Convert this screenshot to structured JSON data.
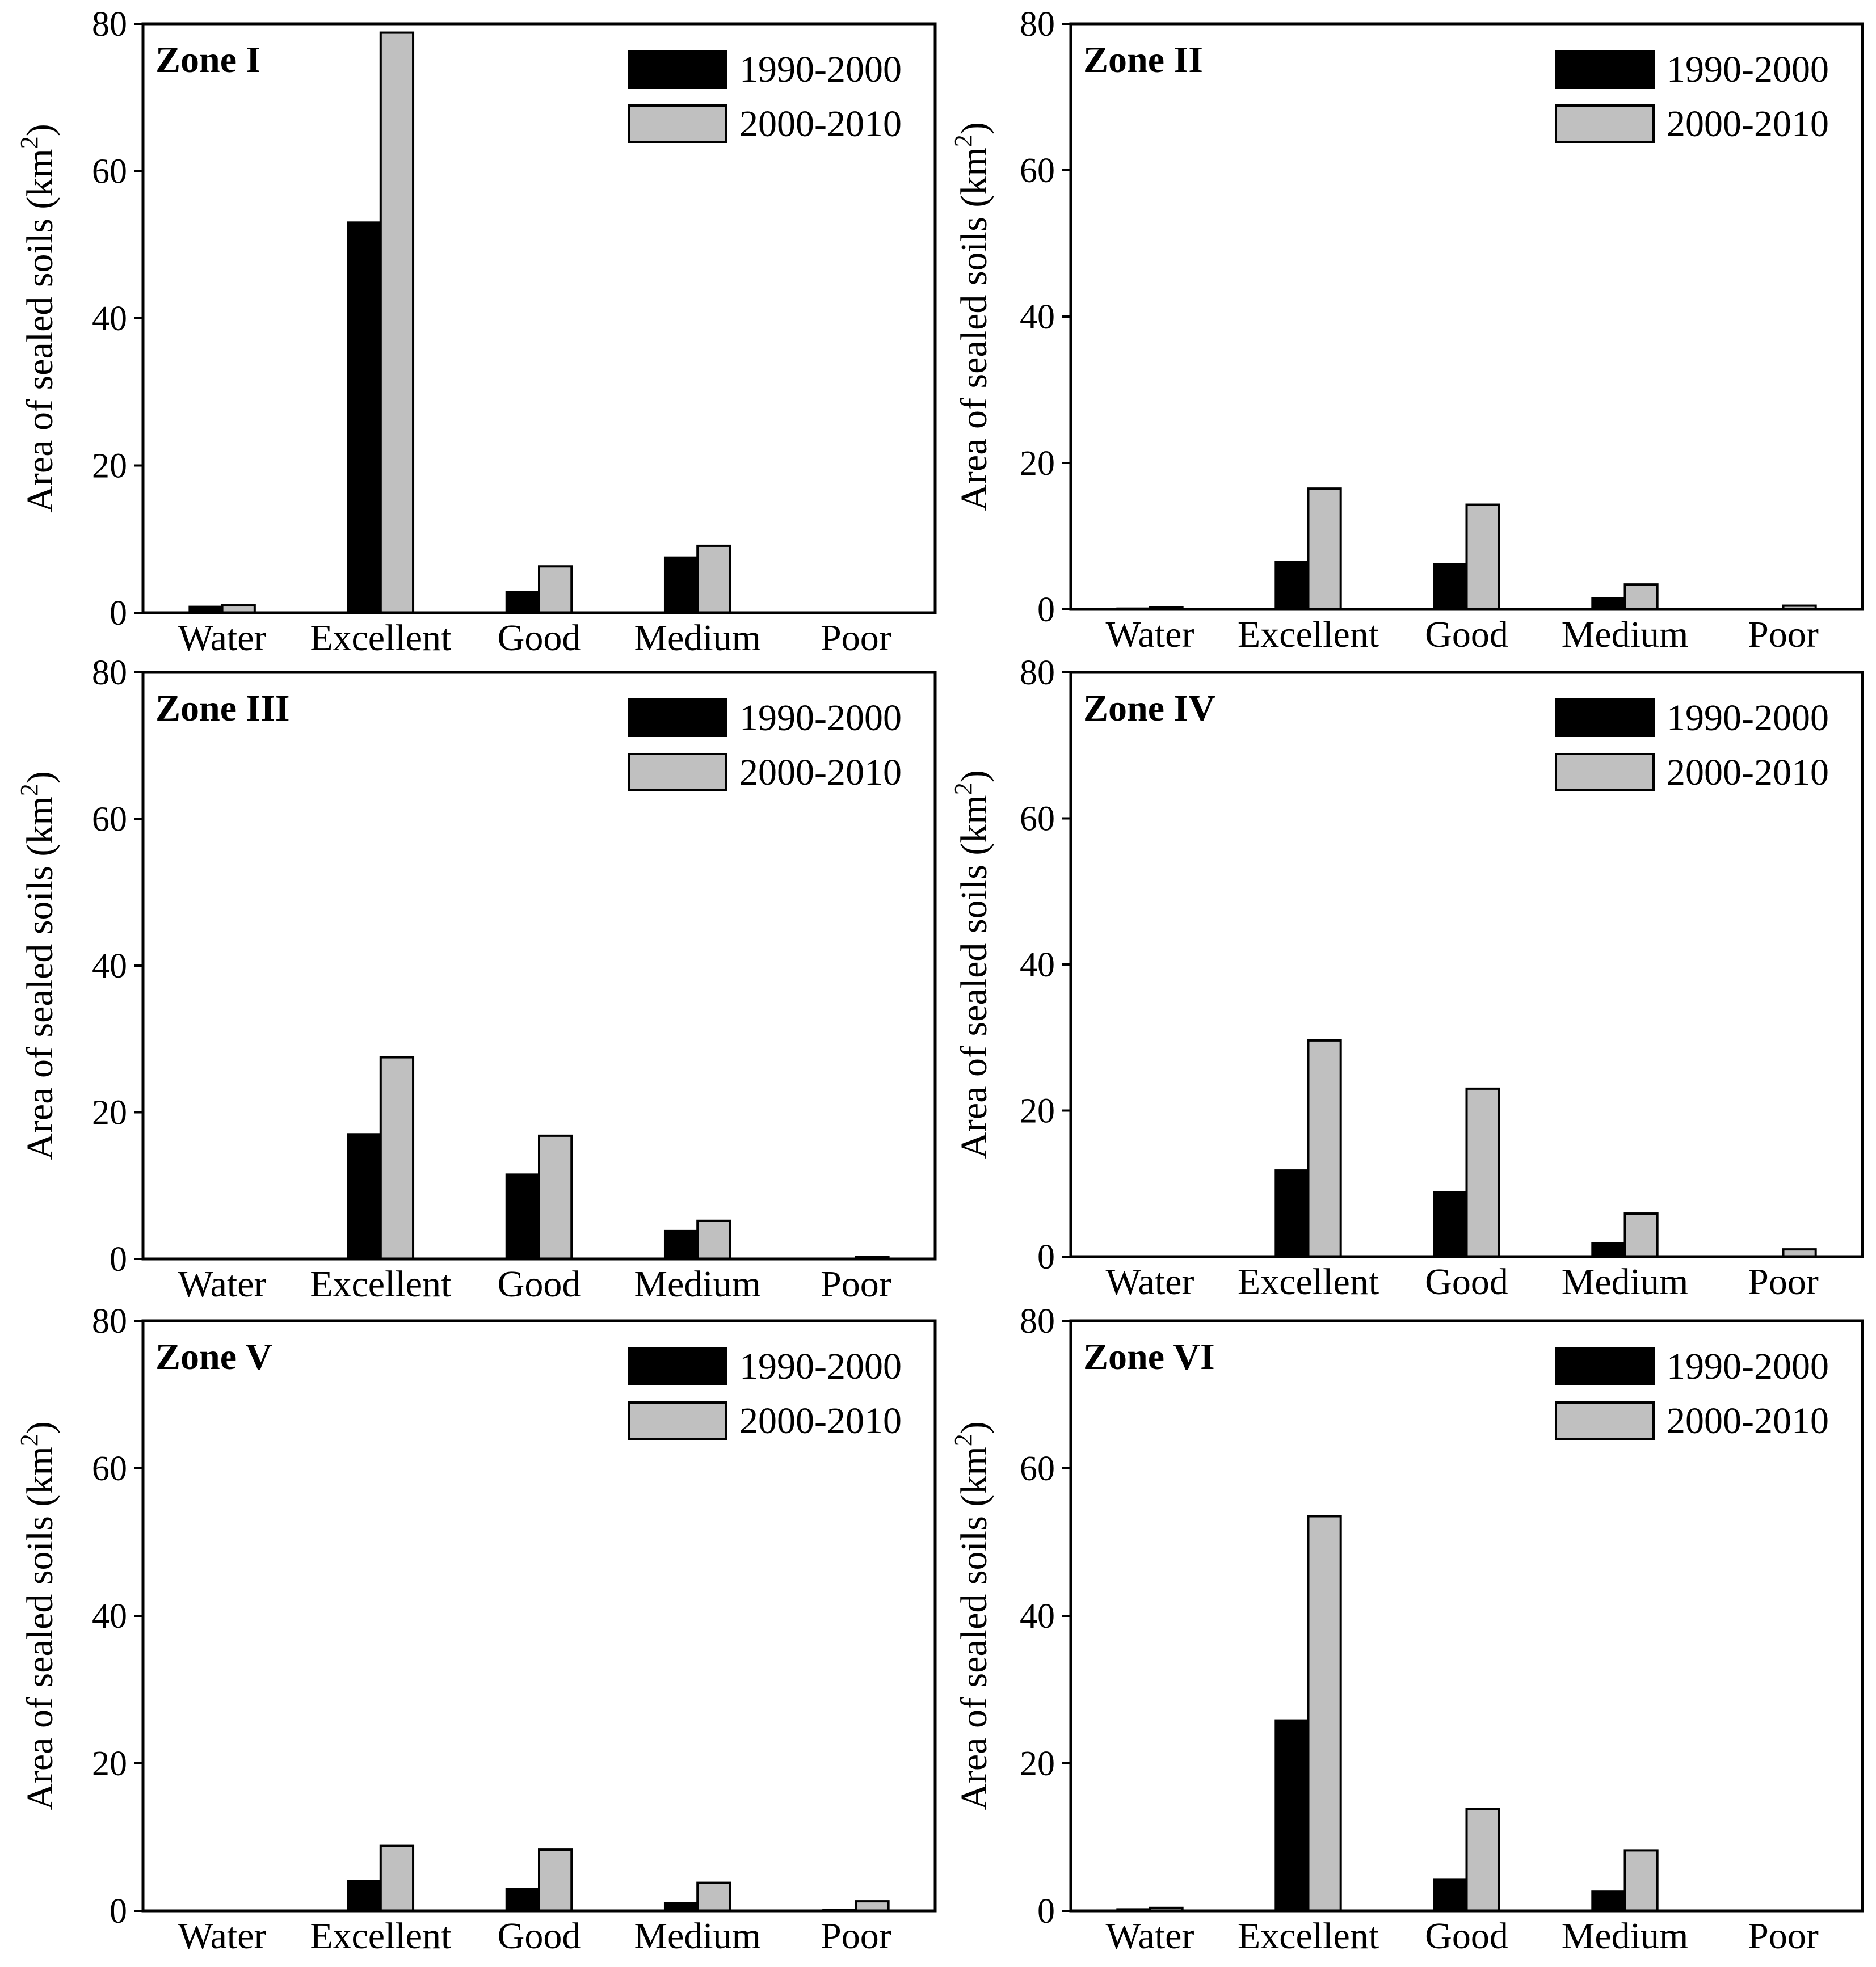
{
  "chart_data": [
    {
      "type": "bar",
      "title": "Zone I",
      "ylabel_main": "Area of sealed soils (km",
      "ylabel_sup": "2",
      "ylabel_close": ")",
      "xlabel": "",
      "ylim": [
        0,
        80
      ],
      "yticks": [
        0,
        20,
        40,
        60,
        80
      ],
      "categories": [
        "Water",
        "Excellent",
        "Good",
        "Medium",
        "Poor"
      ],
      "series": [
        {
          "name": "1990-2000",
          "color": "#000000",
          "values": [
            0.8,
            53,
            2.8,
            7.5,
            0
          ]
        },
        {
          "name": "2000-2010",
          "color": "#c0c0c0",
          "values": [
            1.0,
            78.8,
            6.3,
            9.1,
            0
          ]
        }
      ]
    },
    {
      "type": "bar",
      "title": "Zone II",
      "ylabel_main": "Area of sealed soils (km",
      "ylabel_sup": "2",
      "ylabel_close": ")",
      "xlabel": "",
      "ylim": [
        0,
        80
      ],
      "yticks": [
        0,
        20,
        40,
        60,
        80
      ],
      "categories": [
        "Water",
        "Excellent",
        "Good",
        "Medium",
        "Poor"
      ],
      "series": [
        {
          "name": "1990-2000",
          "color": "#000000",
          "values": [
            0.1,
            6.5,
            6.2,
            1.5,
            0
          ]
        },
        {
          "name": "2000-2010",
          "color": "#c0c0c0",
          "values": [
            0.3,
            16.5,
            14.3,
            3.4,
            0.5
          ]
        }
      ]
    },
    {
      "type": "bar",
      "title": "Zone III",
      "ylabel_main": "Area of sealed soils (km",
      "ylabel_sup": "2",
      "ylabel_close": ")",
      "xlabel": "",
      "ylim": [
        0,
        80
      ],
      "yticks": [
        0,
        20,
        40,
        60,
        80
      ],
      "categories": [
        "Water",
        "Excellent",
        "Good",
        "Medium",
        "Poor"
      ],
      "series": [
        {
          "name": "1990-2000",
          "color": "#000000",
          "values": [
            0,
            17,
            11.5,
            3.8,
            0
          ]
        },
        {
          "name": "2000-2010",
          "color": "#c0c0c0",
          "values": [
            0,
            27.5,
            16.8,
            5.2,
            0.3
          ]
        }
      ]
    },
    {
      "type": "bar",
      "title": "Zone IV",
      "ylabel_main": "Area of sealed soils (km",
      "ylabel_sup": "2",
      "ylabel_close": ")",
      "xlabel": "",
      "ylim": [
        0,
        80
      ],
      "yticks": [
        0,
        20,
        40,
        60,
        80
      ],
      "categories": [
        "Water",
        "Excellent",
        "Good",
        "Medium",
        "Poor"
      ],
      "series": [
        {
          "name": "1990-2000",
          "color": "#000000",
          "values": [
            0,
            11.8,
            8.8,
            1.8,
            0
          ]
        },
        {
          "name": "2000-2010",
          "color": "#c0c0c0",
          "values": [
            0,
            29.6,
            23,
            5.9,
            1
          ]
        }
      ]
    },
    {
      "type": "bar",
      "title": "Zone V",
      "ylabel_main": "Area of sealed soils (km",
      "ylabel_sup": "2",
      "ylabel_close": ")",
      "xlabel": "",
      "ylim": [
        0,
        80
      ],
      "yticks": [
        0,
        20,
        40,
        60,
        80
      ],
      "categories": [
        "Water",
        "Excellent",
        "Good",
        "Medium",
        "Poor"
      ],
      "series": [
        {
          "name": "1990-2000",
          "color": "#000000",
          "values": [
            0,
            4,
            3,
            1,
            0.1
          ]
        },
        {
          "name": "2000-2010",
          "color": "#c0c0c0",
          "values": [
            0,
            8.8,
            8.3,
            3.8,
            1.3
          ]
        }
      ]
    },
    {
      "type": "bar",
      "title": "Zone VI",
      "ylabel_main": "Area of sealed soils (km",
      "ylabel_sup": "2",
      "ylabel_close": ")",
      "xlabel": "",
      "ylim": [
        0,
        80
      ],
      "yticks": [
        0,
        20,
        40,
        60,
        80
      ],
      "categories": [
        "Water",
        "Excellent",
        "Good",
        "Medium",
        "Poor"
      ],
      "series": [
        {
          "name": "1990-2000",
          "color": "#000000",
          "values": [
            0.2,
            25.8,
            4.2,
            2.6,
            0
          ]
        },
        {
          "name": "2000-2010",
          "color": "#c0c0c0",
          "values": [
            0.4,
            53.5,
            13.8,
            8.2,
            0
          ]
        }
      ]
    }
  ]
}
